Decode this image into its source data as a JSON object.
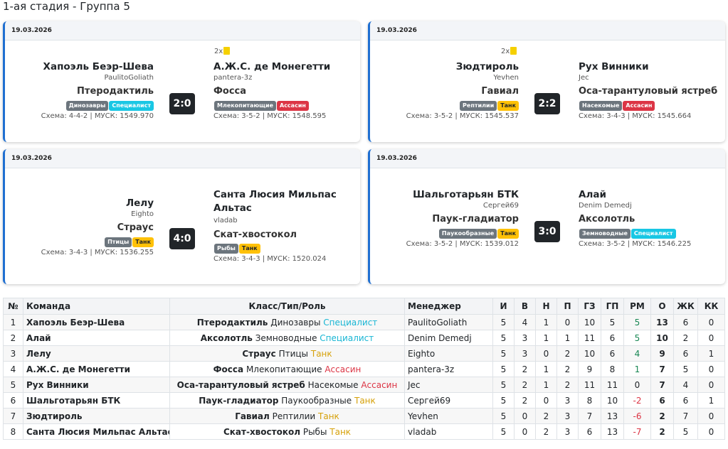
{
  "page_title": "1-ая стадия - Группа 5",
  "matches": [
    {
      "date": "19.03.2026",
      "score": "2:0",
      "cards": "2x",
      "home": {
        "team": "Хапоэль Беэр-Шева",
        "manager": "PaulitoGoliath",
        "class": "Птеродактиль",
        "type": "Динозавры",
        "role": "Специалист",
        "schema": "Схема: 4-4-2 | МУСК: 1549.970"
      },
      "away": {
        "team": "А.Ж.С. де Монегетти",
        "manager": "pantera-3z",
        "class": "Фосса",
        "type": "Млекопитающие",
        "role": "Ассасин",
        "schema": "Схема: 3-5-2 | МУСК: 1548.595"
      }
    },
    {
      "date": "19.03.2026",
      "score": "2:2",
      "cards": "2x",
      "home": {
        "team": "Зюдтироль",
        "manager": "Yevhen",
        "class": "Гавиал",
        "type": "Рептилии",
        "role": "Танк",
        "schema": "Схема: 3-5-2 | МУСК: 1545.537"
      },
      "away": {
        "team": "Рух Винники",
        "manager": "Jec",
        "class": "Оса-тарантуловый ястреб",
        "type": "Насекомые",
        "role": "Ассасин",
        "schema": "Схема: 3-4-3 | МУСК: 1545.664"
      }
    },
    {
      "date": "19.03.2026",
      "score": "4:0",
      "home": {
        "team": "Лелу",
        "manager": "Eighto",
        "class": "Страус",
        "type": "Птицы",
        "role": "Танк",
        "schema": "Схема: 3-4-3 | МУСК: 1536.255"
      },
      "away": {
        "team_line1": "Санта Люсия Мильпас",
        "team_line2": "Альтас",
        "manager": "vladab",
        "class": "Скат-хвостокол",
        "type": "Рыбы",
        "role": "Танк",
        "schema": "Схема: 3-4-3 | МУСК: 1520.024"
      }
    },
    {
      "date": "19.03.2026",
      "score": "3:0",
      "home": {
        "team": "Шальготарьян БТК",
        "manager": "Сергей69",
        "class": "Паук-гладиатор",
        "type": "Паукообразные",
        "role": "Танк",
        "schema": "Схема: 3-5-2 | МУСК: 1539.012"
      },
      "away": {
        "team": "Алай",
        "manager": "Denim Demedj",
        "class": "Аксолотль",
        "type": "Земноводные",
        "role": "Специалист",
        "schema": "Схема: 3-5-2 | МУСК: 1546.225"
      }
    }
  ],
  "table": {
    "headers": [
      "№",
      "Команда",
      "Класс/Тип/Роль",
      "Менеджер",
      "И",
      "В",
      "Н",
      "П",
      "ГЗ",
      "ГП",
      "РМ",
      "О",
      "ЖК",
      "КК"
    ],
    "rows": [
      {
        "n": "1",
        "team": "Хапоэль Беэр-Шева",
        "cls": "Птеродактиль",
        "type": "Динозавры",
        "role": "Специалист",
        "role_color": "cyan",
        "mgr": "PaulitoGoliath",
        "i": "5",
        "w": "4",
        "d": "1",
        "l": "0",
        "gz": "10",
        "gp": "5",
        "rm": "5",
        "rm_sign": "pos",
        "pts": "13",
        "yc": "6",
        "rc": "0"
      },
      {
        "n": "2",
        "team": "Алай",
        "cls": "Аксолотль",
        "type": "Земноводные",
        "role": "Специалист",
        "role_color": "cyan",
        "mgr": "Denim Demedj",
        "i": "5",
        "w": "3",
        "d": "1",
        "l": "1",
        "gz": "11",
        "gp": "6",
        "rm": "5",
        "rm_sign": "pos",
        "pts": "10",
        "yc": "2",
        "rc": "0"
      },
      {
        "n": "3",
        "team": "Лелу",
        "cls": "Страус",
        "type": "Птицы",
        "role": "Танк",
        "role_color": "yellow",
        "mgr": "Eighto",
        "i": "5",
        "w": "3",
        "d": "0",
        "l": "2",
        "gz": "10",
        "gp": "6",
        "rm": "4",
        "rm_sign": "pos",
        "pts": "9",
        "yc": "6",
        "rc": "1"
      },
      {
        "n": "4",
        "team": "А.Ж.С. де Монегетти",
        "cls": "Фосса",
        "type": "Млекопитающие",
        "role": "Ассасин",
        "role_color": "red",
        "mgr": "pantera-3z",
        "i": "5",
        "w": "2",
        "d": "1",
        "l": "2",
        "gz": "9",
        "gp": "8",
        "rm": "1",
        "rm_sign": "pos",
        "pts": "7",
        "yc": "5",
        "rc": "0"
      },
      {
        "n": "5",
        "team": "Рух Винники",
        "cls": "Оса-тарантуловый ястреб",
        "type": "Насекомые",
        "role": "Ассасин",
        "role_color": "red",
        "mgr": "Jec",
        "i": "5",
        "w": "2",
        "d": "1",
        "l": "2",
        "gz": "11",
        "gp": "11",
        "rm": "0",
        "rm_sign": "zero",
        "pts": "7",
        "yc": "4",
        "rc": "0"
      },
      {
        "n": "6",
        "team": "Шальготарьян БТК",
        "cls": "Паук-гладиатор",
        "type": "Паукообразные",
        "role": "Танк",
        "role_color": "yellow",
        "mgr": "Сергей69",
        "i": "5",
        "w": "2",
        "d": "0",
        "l": "3",
        "gz": "8",
        "gp": "10",
        "rm": "-2",
        "rm_sign": "neg",
        "pts": "6",
        "yc": "6",
        "rc": "1"
      },
      {
        "n": "7",
        "team": "Зюдтироль",
        "cls": "Гавиал",
        "type": "Рептилии",
        "role": "Танк",
        "role_color": "yellow",
        "mgr": "Yevhen",
        "i": "5",
        "w": "0",
        "d": "2",
        "l": "3",
        "gz": "7",
        "gp": "13",
        "rm": "-6",
        "rm_sign": "neg",
        "pts": "2",
        "yc": "7",
        "rc": "0"
      },
      {
        "n": "8",
        "team": "Санта Люсия Мильпас Альтас",
        "cls": "Скат-хвостокол",
        "type": "Рыбы",
        "role": "Танк",
        "role_color": "yellow",
        "mgr": "vladab",
        "i": "5",
        "w": "0",
        "d": "2",
        "l": "3",
        "gz": "6",
        "gp": "13",
        "rm": "-7",
        "rm_sign": "neg",
        "pts": "2",
        "yc": "5",
        "rc": "0"
      }
    ]
  },
  "colors": {
    "accent": "#1f6fd1",
    "score_bg": "#212529",
    "badge_gray": "#6c757d",
    "badge_cyan": "#19c7e4",
    "badge_red": "#dc3545",
    "badge_yellow": "#ffc107"
  }
}
